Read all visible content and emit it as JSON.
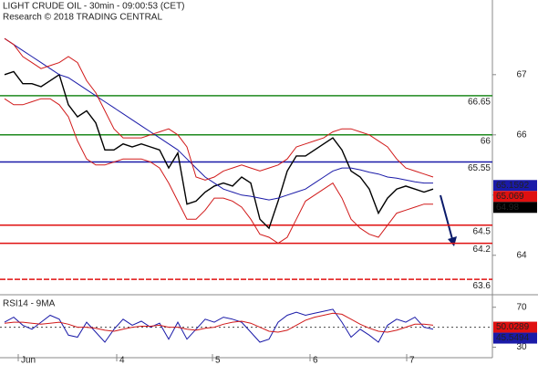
{
  "chart_data": [
    {
      "type": "line",
      "title": "LIGHT CRUDE OIL - 30min - 09:00:53 (CET)",
      "subtitle": "Research © 2018 TRADING CENTRAL",
      "xlim": [
        0,
        47
      ],
      "ylim": [
        63.36,
        68.24
      ],
      "yticks": [
        64,
        65,
        66,
        67
      ],
      "series": [
        {
          "color": "#000000",
          "width": 1.4,
          "values": [
            67.0,
            67.05,
            66.85,
            66.85,
            66.8,
            66.9,
            67.0,
            66.5,
            66.3,
            66.4,
            66.2,
            65.75,
            65.75,
            65.85,
            65.8,
            65.85,
            65.8,
            65.75,
            65.45,
            65.7,
            64.85,
            64.9,
            65.05,
            65.15,
            65.2,
            65.15,
            65.3,
            65.2,
            64.6,
            64.45,
            64.9,
            65.4,
            65.65,
            65.65,
            65.75,
            65.85,
            65.95,
            65.75,
            65.4,
            65.3,
            65.1,
            64.7,
            64.95,
            65.1,
            65.15,
            65.1,
            65.05,
            65.1
          ]
        },
        {
          "color": "#1a1aa8",
          "width": 1,
          "values": [
            67.6,
            67.5,
            67.4,
            67.3,
            67.2,
            67.1,
            67.0,
            66.95,
            66.85,
            66.75,
            66.65,
            66.55,
            66.45,
            66.35,
            66.25,
            66.15,
            66.05,
            65.95,
            65.85,
            65.75,
            65.6,
            65.45,
            65.3,
            65.2,
            65.1,
            65.05,
            65.0,
            64.98,
            64.95,
            64.92,
            64.95,
            65.0,
            65.05,
            65.1,
            65.2,
            65.3,
            65.4,
            65.45,
            65.45,
            65.42,
            65.38,
            65.35,
            65.3,
            65.28,
            65.25,
            65.22,
            65.2,
            65.2
          ]
        },
        {
          "color": "#d11a1a",
          "width": 1,
          "values": [
            67.6,
            67.5,
            67.3,
            67.2,
            67.1,
            67.15,
            67.2,
            67.3,
            67.2,
            66.9,
            66.7,
            66.4,
            66.1,
            65.95,
            65.95,
            65.95,
            66.0,
            66.05,
            66.1,
            66.0,
            65.8,
            65.3,
            65.25,
            65.3,
            65.4,
            65.45,
            65.5,
            65.45,
            65.4,
            65.45,
            65.5,
            65.6,
            65.8,
            65.85,
            65.9,
            65.95,
            66.05,
            66.1,
            66.1,
            66.05,
            66.0,
            65.9,
            65.8,
            65.6,
            65.45,
            65.4,
            65.35,
            65.3
          ]
        },
        {
          "color": "#d11a1a",
          "width": 1,
          "values": [
            66.6,
            66.5,
            66.5,
            66.55,
            66.6,
            66.6,
            66.5,
            66.3,
            65.9,
            65.6,
            65.5,
            65.5,
            65.55,
            65.6,
            65.6,
            65.6,
            65.55,
            65.45,
            65.2,
            64.9,
            64.6,
            64.6,
            64.75,
            64.95,
            64.95,
            64.9,
            64.8,
            64.6,
            64.35,
            64.3,
            64.2,
            64.3,
            64.6,
            64.9,
            65.0,
            65.1,
            65.2,
            64.95,
            64.6,
            64.45,
            64.35,
            64.3,
            64.5,
            64.7,
            64.75,
            64.8,
            64.85,
            64.85
          ]
        }
      ],
      "levels": [
        {
          "value": 66.65,
          "color": "#1e8a1e"
        },
        {
          "value": 66,
          "color": "#1e8a1e"
        },
        {
          "value": 65.55,
          "color": "#1a1aa8"
        },
        {
          "value": 64.5,
          "color": "#e01010"
        },
        {
          "value": 64.2,
          "color": "#e01010"
        },
        {
          "value": 63.6,
          "color": "#e01010",
          "dashed": true
        }
      ],
      "tags": [
        {
          "value": 65.1592,
          "color": "#1a1aa8"
        },
        {
          "value": 65.069,
          "color": "#e01010"
        },
        {
          "value": 64.98,
          "color": "#000000"
        }
      ]
    },
    {
      "type": "line",
      "title": "RSI14 - 9MA",
      "xlim": [
        0,
        47
      ],
      "ylim": [
        16.7,
        80.7
      ],
      "yticks": [
        70,
        30
      ],
      "ref_line": 50,
      "xticks": [
        {
          "value": 1.5,
          "label": "Jun"
        },
        {
          "value": 12.3,
          "label": "4"
        },
        {
          "value": 22.8,
          "label": "5"
        },
        {
          "value": 33.5,
          "label": "6"
        },
        {
          "value": 44.1,
          "label": "7"
        }
      ],
      "series": [
        {
          "color": "#1a1aa8",
          "width": 1,
          "values": [
            55,
            60,
            52,
            48,
            55,
            62,
            58,
            42,
            40,
            55,
            45,
            35,
            48,
            58,
            52,
            56,
            50,
            54,
            38,
            55,
            38,
            48,
            58,
            55,
            60,
            58,
            55,
            45,
            35,
            38,
            55,
            62,
            65,
            62,
            64,
            66,
            68,
            55,
            40,
            48,
            42,
            35,
            52,
            58,
            55,
            60,
            50,
            48
          ]
        },
        {
          "color": "#d11a1a",
          "width": 1,
          "values": [
            54,
            55,
            55,
            54,
            53,
            54,
            55,
            53,
            50,
            50,
            49,
            47,
            46,
            48,
            50,
            51,
            51,
            52,
            50,
            50,
            48,
            47,
            49,
            50,
            53,
            55,
            56,
            54,
            50,
            46,
            45,
            47,
            52,
            57,
            60,
            62,
            64,
            63,
            58,
            53,
            49,
            46,
            45,
            47,
            50,
            53,
            53,
            52
          ]
        }
      ],
      "tags": [
        {
          "value": 50.0289,
          "color": "#e01010"
        },
        {
          "value": 45.5494,
          "color": "#1a1aa8"
        }
      ]
    }
  ]
}
